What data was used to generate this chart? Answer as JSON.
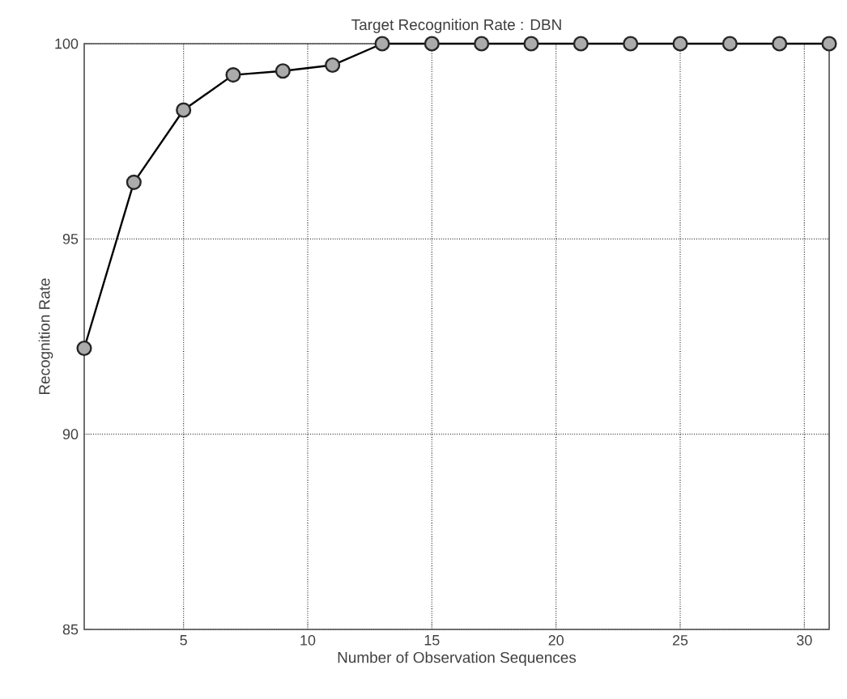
{
  "chart_data": {
    "type": "line",
    "title": "Target Recognition Rate : DBN",
    "xlabel": "Number of Observation Sequences",
    "ylabel": "Recognition Rate",
    "x": [
      1,
      3,
      5,
      7,
      9,
      11,
      13,
      15,
      17,
      19,
      21,
      23,
      25,
      27,
      29,
      31
    ],
    "series": [
      {
        "color": "#000000",
        "values": [
          92.2,
          96.45,
          98.3,
          99.2,
          99.3,
          99.45,
          100,
          100,
          100,
          100,
          100,
          100,
          100,
          100,
          100,
          100
        ]
      }
    ],
    "marker": "circle",
    "line_style": "solid",
    "grid": true,
    "xlim": [
      1,
      31
    ],
    "xticks": [
      5,
      10,
      15,
      20,
      25,
      30
    ],
    "ylim": [
      85,
      100
    ],
    "yticks": [
      85,
      90,
      95,
      100
    ]
  }
}
